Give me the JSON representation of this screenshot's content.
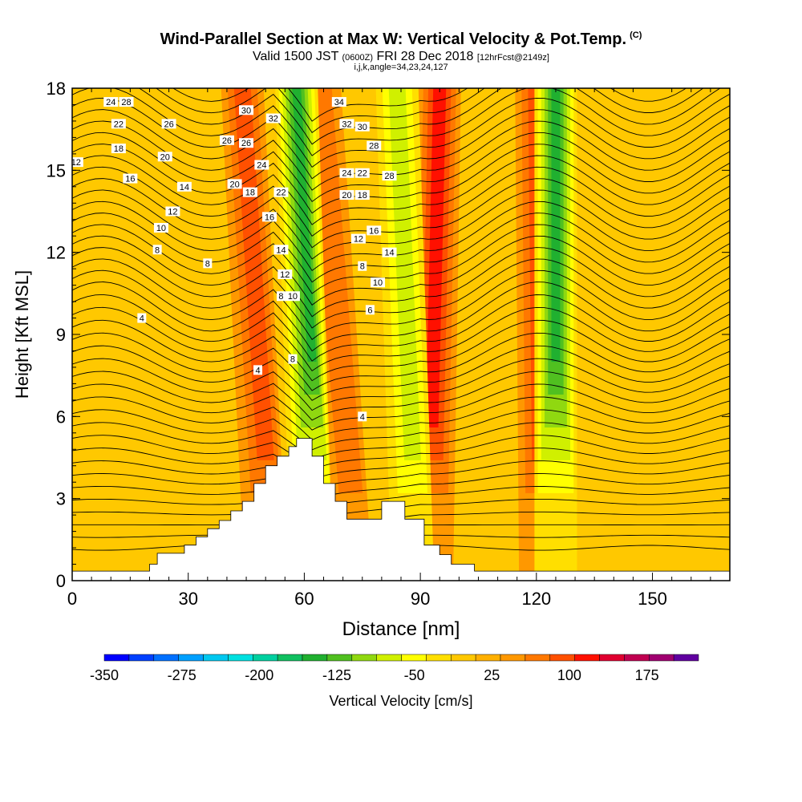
{
  "header": {
    "title": "Wind-Parallel Section at Max W: Vertical Velocity & Pot.Temp.",
    "title_mark": "(C)",
    "valid_prefix": "Valid 1500 JST",
    "valid_utc": "(0600Z)",
    "valid_date": "FRI 28 Dec 2018",
    "forecast": "[12hrFcst@2149z]",
    "indices": "i,j,k,angle=34,23,24,127"
  },
  "chart_data": {
    "type": "heatmap",
    "xlabel": "Distance [nm]",
    "ylabel": "Height [Kft MSL]",
    "xlim": [
      0,
      170
    ],
    "ylim": [
      0,
      18
    ],
    "x_ticks": [
      0,
      30,
      60,
      90,
      120,
      150
    ],
    "y_ticks": [
      0,
      3,
      6,
      9,
      12,
      15,
      18
    ],
    "colorbar": {
      "label": "Vertical Velocity [cm/s]",
      "range": [
        -350,
        225
      ],
      "step": 25,
      "tick_labels": [
        -350,
        -275,
        -200,
        -125,
        -50,
        25,
        100,
        175
      ],
      "colors": [
        "#0000ff",
        "#0040ff",
        "#0070ff",
        "#00a0ff",
        "#00c8f0",
        "#00e0e0",
        "#00d0a0",
        "#10c060",
        "#20b030",
        "#50c020",
        "#90d810",
        "#d0f000",
        "#ffff00",
        "#ffdf00",
        "#ffc800",
        "#ffb000",
        "#ff9800",
        "#ff7800",
        "#ff5000",
        "#ff1000",
        "#e00030",
        "#c00050",
        "#a00070",
        "#6000a0"
      ]
    },
    "updraft_bands": [
      {
        "x_bottom": 50,
        "x_top": 44,
        "peak": 100
      },
      {
        "x_bottom": 72,
        "x_top": 64,
        "peak": 75
      },
      {
        "x_bottom": 93,
        "x_top": 95,
        "peak": 125
      },
      {
        "x_bottom": 121,
        "x_top": 120,
        "peak": 100
      },
      {
        "x_bottom": 155,
        "x_top": 158,
        "peak": 25
      }
    ],
    "downdraft_bands": [
      {
        "x_bottom": 62,
        "x_top": 58,
        "peak": -150
      },
      {
        "x_bottom": 88,
        "x_top": 84,
        "peak": -75
      },
      {
        "x_bottom": 125,
        "x_top": 125,
        "peak": -150
      }
    ],
    "terrain": [
      [
        0,
        0.35
      ],
      [
        20,
        0.35
      ],
      [
        20,
        0.6
      ],
      [
        22,
        0.6
      ],
      [
        22,
        1.0
      ],
      [
        29,
        1.0
      ],
      [
        29,
        1.3
      ],
      [
        32,
        1.3
      ],
      [
        32,
        1.6
      ],
      [
        35,
        1.6
      ],
      [
        35,
        1.9
      ],
      [
        38,
        1.9
      ],
      [
        38,
        2.2
      ],
      [
        41,
        2.2
      ],
      [
        41,
        2.55
      ],
      [
        44,
        2.55
      ],
      [
        44,
        2.9
      ],
      [
        47,
        2.9
      ],
      [
        47,
        3.55
      ],
      [
        50,
        3.55
      ],
      [
        50,
        4.2
      ],
      [
        53,
        4.2
      ],
      [
        53,
        4.55
      ],
      [
        56,
        4.55
      ],
      [
        56,
        4.9
      ],
      [
        58,
        4.9
      ],
      [
        58,
        5.2
      ],
      [
        62,
        5.2
      ],
      [
        62,
        4.55
      ],
      [
        65,
        4.55
      ],
      [
        65,
        3.55
      ],
      [
        68,
        3.55
      ],
      [
        68,
        2.9
      ],
      [
        71,
        2.9
      ],
      [
        71,
        2.25
      ],
      [
        80,
        2.25
      ],
      [
        80,
        2.9
      ],
      [
        86,
        2.9
      ],
      [
        86,
        2.25
      ],
      [
        91,
        2.25
      ],
      [
        91,
        1.3
      ],
      [
        95,
        1.3
      ],
      [
        95,
        0.95
      ],
      [
        98,
        0.95
      ],
      [
        98,
        0.6
      ],
      [
        104,
        0.6
      ],
      [
        104,
        0.35
      ],
      [
        170,
        0.35
      ]
    ],
    "theta_contour_labels": [
      {
        "text": "24",
        "x": 10,
        "y": 17.5
      },
      {
        "text": "28",
        "x": 14,
        "y": 17.5
      },
      {
        "text": "22",
        "x": 12,
        "y": 16.7
      },
      {
        "text": "26",
        "x": 25,
        "y": 16.7
      },
      {
        "text": "12",
        "x": 1,
        "y": 15.3
      },
      {
        "text": "18",
        "x": 12,
        "y": 15.8
      },
      {
        "text": "20",
        "x": 24,
        "y": 15.5
      },
      {
        "text": "16",
        "x": 15,
        "y": 14.7
      },
      {
        "text": "14",
        "x": 29,
        "y": 14.4
      },
      {
        "text": "12",
        "x": 26,
        "y": 13.5
      },
      {
        "text": "10",
        "x": 23,
        "y": 12.9
      },
      {
        "text": "8",
        "x": 22,
        "y": 12.1
      },
      {
        "text": "8",
        "x": 35,
        "y": 11.6
      },
      {
        "text": "4",
        "x": 18,
        "y": 9.6
      },
      {
        "text": "30",
        "x": 45,
        "y": 17.2
      },
      {
        "text": "32",
        "x": 52,
        "y": 16.9
      },
      {
        "text": "26",
        "x": 40,
        "y": 16.1
      },
      {
        "text": "26",
        "x": 45,
        "y": 16.0
      },
      {
        "text": "24",
        "x": 49,
        "y": 15.2
      },
      {
        "text": "20",
        "x": 42,
        "y": 14.5
      },
      {
        "text": "18",
        "x": 46,
        "y": 14.2
      },
      {
        "text": "22",
        "x": 54,
        "y": 14.2
      },
      {
        "text": "16",
        "x": 51,
        "y": 13.3
      },
      {
        "text": "14",
        "x": 54,
        "y": 12.1
      },
      {
        "text": "12",
        "x": 55,
        "y": 11.2
      },
      {
        "text": "8",
        "x": 54,
        "y": 10.4
      },
      {
        "text": "10",
        "x": 57,
        "y": 10.4
      },
      {
        "text": "8",
        "x": 57,
        "y": 8.1
      },
      {
        "text": "4",
        "x": 48,
        "y": 7.7
      },
      {
        "text": "34",
        "x": 69,
        "y": 17.5
      },
      {
        "text": "32",
        "x": 71,
        "y": 16.7
      },
      {
        "text": "30",
        "x": 75,
        "y": 16.6
      },
      {
        "text": "28",
        "x": 78,
        "y": 15.9
      },
      {
        "text": "24",
        "x": 71,
        "y": 14.9
      },
      {
        "text": "22",
        "x": 75,
        "y": 14.9
      },
      {
        "text": "28",
        "x": 82,
        "y": 14.8
      },
      {
        "text": "20",
        "x": 71,
        "y": 14.1
      },
      {
        "text": "18",
        "x": 75,
        "y": 14.1
      },
      {
        "text": "16",
        "x": 78,
        "y": 12.8
      },
      {
        "text": "12",
        "x": 74,
        "y": 12.5
      },
      {
        "text": "14",
        "x": 82,
        "y": 12.0
      },
      {
        "text": "8",
        "x": 75,
        "y": 11.5
      },
      {
        "text": "10",
        "x": 79,
        "y": 10.9
      },
      {
        "text": "6",
        "x": 77,
        "y": 9.9
      },
      {
        "text": "4",
        "x": 75,
        "y": 6.0
      }
    ],
    "grid": false,
    "legend": "bottom"
  }
}
